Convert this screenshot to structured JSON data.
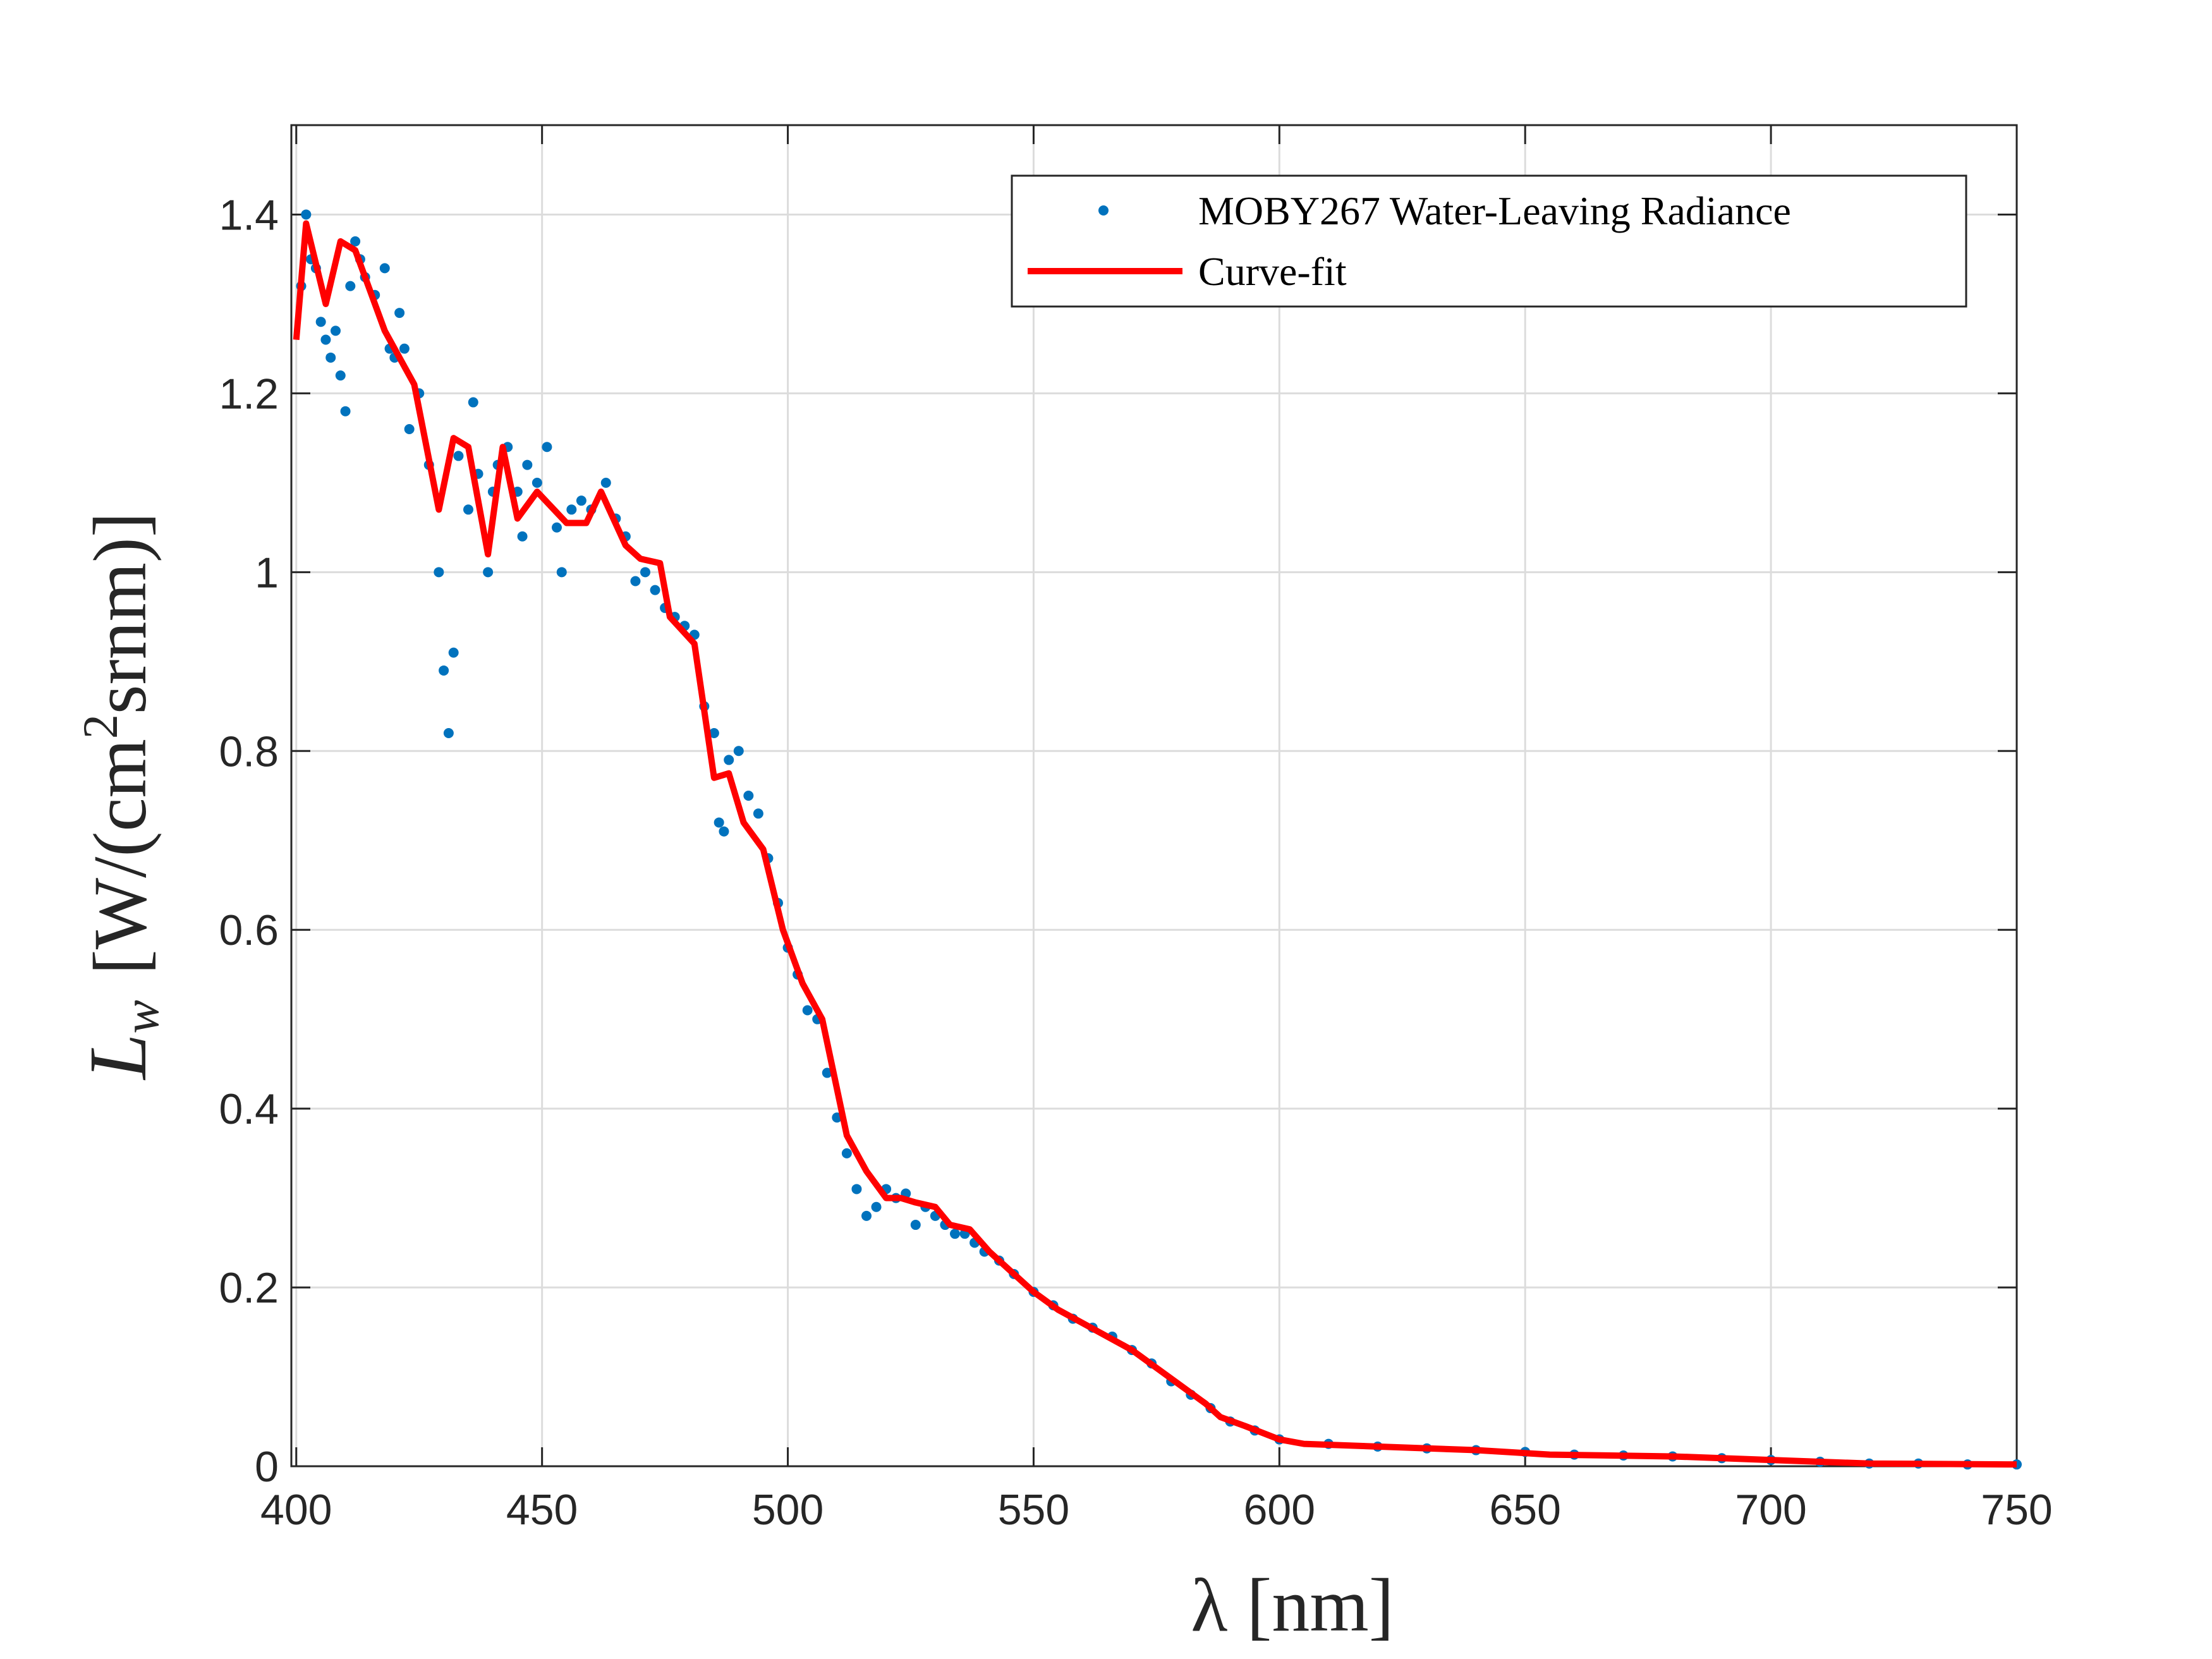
{
  "chart_data": {
    "type": "line",
    "xlabel": "λ [nm]",
    "ylabel": [
      "L",
      "w",
      "[W/(cm",
      "2",
      "srnm)]"
    ],
    "xlim": [
      399,
      750
    ],
    "ylim": [
      0,
      1.5
    ],
    "xticks": [
      400,
      450,
      500,
      550,
      600,
      650,
      700,
      750
    ],
    "yticks": [
      0,
      0.2,
      0.4,
      0.6,
      0.8,
      1,
      1.2,
      1.4
    ],
    "grid": true,
    "legend": "upper right",
    "series": [
      {
        "name": "MOBY267 Water-Leaving Radiance",
        "type": "scatter",
        "color": "#0072bd",
        "x": [
          401,
          402,
          403,
          404,
          405,
          406,
          407,
          408,
          409,
          410,
          411,
          412,
          413,
          414,
          416,
          418,
          419,
          420,
          421,
          422,
          423,
          425,
          427,
          429,
          430,
          431,
          432,
          433,
          435,
          436,
          437,
          439,
          440,
          441,
          443,
          445,
          446,
          447,
          449,
          451,
          453,
          454,
          456,
          458,
          460,
          463,
          465,
          467,
          469,
          471,
          473,
          475,
          477,
          479,
          481,
          483,
          485,
          486,
          487,
          488,
          490,
          492,
          494,
          496,
          498,
          500,
          502,
          504,
          506,
          508,
          510,
          512,
          514,
          516,
          518,
          520,
          522,
          524,
          526,
          528,
          530,
          532,
          534,
          536,
          538,
          540,
          543,
          546,
          550,
          554,
          558,
          562,
          566,
          570,
          574,
          578,
          582,
          586,
          590,
          595,
          600,
          610,
          620,
          630,
          640,
          650,
          660,
          670,
          680,
          690,
          700,
          710,
          720,
          730,
          740,
          750
        ],
        "values": [
          1.32,
          1.4,
          1.35,
          1.34,
          1.28,
          1.26,
          1.24,
          1.27,
          1.22,
          1.18,
          1.32,
          1.37,
          1.35,
          1.33,
          1.31,
          1.34,
          1.25,
          1.24,
          1.29,
          1.25,
          1.16,
          1.2,
          1.12,
          1.0,
          0.89,
          0.82,
          0.91,
          1.13,
          1.07,
          1.19,
          1.11,
          1.0,
          1.09,
          1.12,
          1.14,
          1.09,
          1.04,
          1.12,
          1.1,
          1.14,
          1.05,
          1.0,
          1.07,
          1.08,
          1.07,
          1.1,
          1.06,
          1.04,
          0.99,
          1.0,
          0.98,
          0.96,
          0.95,
          0.94,
          0.93,
          0.85,
          0.82,
          0.72,
          0.71,
          0.79,
          0.8,
          0.75,
          0.73,
          0.68,
          0.63,
          0.58,
          0.55,
          0.51,
          0.5,
          0.44,
          0.39,
          0.35,
          0.31,
          0.28,
          0.29,
          0.31,
          0.3,
          0.305,
          0.27,
          0.29,
          0.28,
          0.27,
          0.26,
          0.26,
          0.25,
          0.24,
          0.23,
          0.215,
          0.195,
          0.18,
          0.165,
          0.155,
          0.145,
          0.13,
          0.115,
          0.095,
          0.08,
          0.065,
          0.05,
          0.04,
          0.03,
          0.025,
          0.022,
          0.02,
          0.018,
          0.016,
          0.013,
          0.012,
          0.011,
          0.009,
          0.007,
          0.005,
          0.003,
          0.003,
          0.002,
          0.002
        ]
      },
      {
        "name": "Curve-fit",
        "type": "line",
        "color": "#ff0000",
        "x": [
          400,
          402,
          406,
          409,
          412,
          418,
          424,
          429,
          432,
          435,
          439,
          442,
          445,
          449,
          455,
          459,
          462,
          467,
          470,
          474,
          476,
          481,
          485,
          488,
          491,
          495,
          499,
          503,
          507,
          512,
          516,
          520,
          523,
          526,
          530,
          533,
          537,
          541,
          545,
          550,
          555,
          560,
          565,
          570,
          575,
          580,
          585,
          588,
          593,
          600,
          605,
          620,
          640,
          655,
          680,
          700,
          720,
          750
        ],
        "values": [
          1.26,
          1.39,
          1.3,
          1.37,
          1.36,
          1.27,
          1.21,
          1.07,
          1.15,
          1.14,
          1.02,
          1.14,
          1.06,
          1.09,
          1.055,
          1.055,
          1.09,
          1.03,
          1.015,
          1.01,
          0.95,
          0.92,
          0.77,
          0.775,
          0.72,
          0.69,
          0.6,
          0.54,
          0.5,
          0.37,
          0.33,
          0.3,
          0.3,
          0.295,
          0.29,
          0.27,
          0.265,
          0.24,
          0.22,
          0.195,
          0.175,
          0.16,
          0.145,
          0.13,
          0.11,
          0.09,
          0.07,
          0.055,
          0.045,
          0.03,
          0.025,
          0.022,
          0.018,
          0.013,
          0.011,
          0.007,
          0.003,
          0.002
        ]
      }
    ]
  }
}
